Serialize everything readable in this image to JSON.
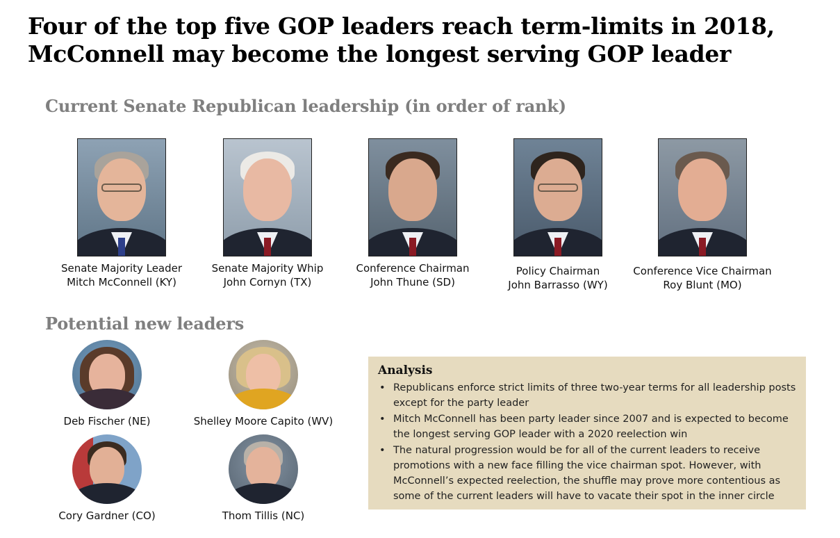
{
  "title": {
    "line1": "Four of the top five GOP leaders reach term-limits in 2018,",
    "line2": "McConnell may become the longest serving GOP leader"
  },
  "current_section": {
    "heading": "Current Senate Republican leadership (in order of rank)",
    "leaders": [
      {
        "role": "Senate Majority Leader",
        "name": "Mitch McConnell (KY)"
      },
      {
        "role": "Senate Majority Whip",
        "name": "John Cornyn (TX)"
      },
      {
        "role": "Conference Chairman",
        "name": "John Thune (SD)"
      },
      {
        "role": "Policy Chairman",
        "name": "John Barrasso (WY)"
      },
      {
        "role": "Conference Vice Chairman",
        "name": "Roy Blunt (MO)"
      }
    ]
  },
  "potential_section": {
    "heading": "Potential new leaders",
    "candidates": [
      {
        "name": "Deb Fischer (NE)"
      },
      {
        "name": "Shelley Moore Capito (WV)"
      },
      {
        "name": "Cory Gardner (CO)"
      },
      {
        "name": "Thom Tillis (NC)"
      }
    ]
  },
  "analysis": {
    "heading": "Analysis",
    "bullets": [
      "Republicans enforce strict limits of three two-year terms for all leadership posts except for the party leader",
      "Mitch McConnell has been party leader since 2007 and is expected to become the longest serving GOP leader with a 2020 reelection win",
      "The natural progression would be for all of the current leaders to receive promotions with a new face filling the vice chairman spot. However, with McConnell’s expected reelection, the shuffle may prove more contentious as some of the current leaders will have to vacate their spot in the inner circle"
    ],
    "background_color": "#e6dbbf"
  },
  "colors": {
    "section_heading": "#7f7f7f",
    "title": "#000000"
  }
}
